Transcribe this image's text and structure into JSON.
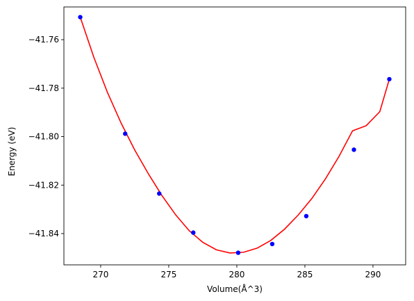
{
  "chart_data": {
    "type": "scatter",
    "title": "",
    "xlabel": "Volume(Å^3)",
    "ylabel": "Energy (eV)",
    "xlim": [
      267.3,
      292.4
    ],
    "ylim": [
      -41.8529,
      -41.7465
    ],
    "x_ticks": [
      270,
      275,
      280,
      285,
      290
    ],
    "y_ticks": [
      -41.76,
      -41.78,
      -41.8,
      -41.82,
      -41.84
    ],
    "x_tick_labels": [
      "270",
      "275",
      "280",
      "285",
      "290"
    ],
    "y_tick_labels": [
      "−41.76",
      "−41.78",
      "−41.80",
      "−41.82",
      "−41.84"
    ],
    "grid": false,
    "series": [
      {
        "kind": "points",
        "color": "#0000ff",
        "x": [
          268.5,
          271.8,
          274.3,
          276.8,
          280.1,
          282.6,
          285.1,
          288.6,
          291.2
        ],
        "y": [
          -41.7507,
          -41.7988,
          -41.8235,
          -41.8396,
          -41.8479,
          -41.8443,
          -41.8328,
          -41.8054,
          -41.7763
        ]
      },
      {
        "kind": "fit-curve",
        "color": "#ff0000",
        "x": [
          268.5,
          269.5,
          270.5,
          271.5,
          272.5,
          273.5,
          274.5,
          275.5,
          276.5,
          277.5,
          278.5,
          279.5,
          280.5,
          281.5,
          282.5,
          283.5,
          284.5,
          285.5,
          286.5,
          287.5,
          288.5,
          289.5,
          290.5,
          291.2
        ],
        "y": [
          -41.7507,
          -41.7673,
          -41.7818,
          -41.7944,
          -41.8055,
          -41.8153,
          -41.8243,
          -41.8322,
          -41.8388,
          -41.8436,
          -41.8467,
          -41.848,
          -41.8477,
          -41.846,
          -41.8428,
          -41.8382,
          -41.8324,
          -41.8256,
          -41.8175,
          -41.8082,
          -41.7976,
          -41.7955,
          -41.7897,
          -41.7763
        ]
      }
    ]
  }
}
